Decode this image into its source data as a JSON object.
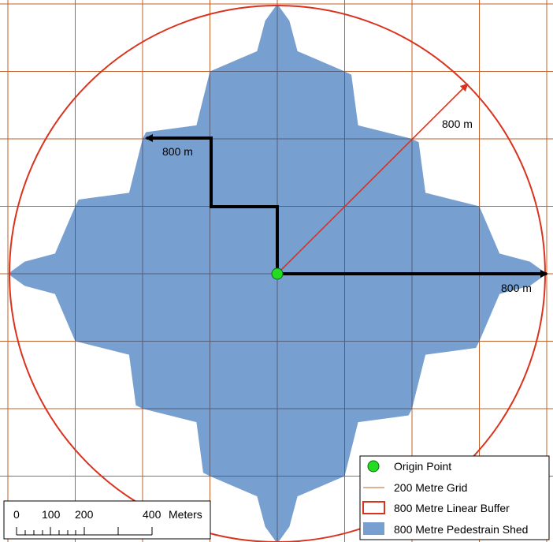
{
  "colors": {
    "grid": "#c0602a",
    "buffer": "#d9331e",
    "shed_fill": "#779fcf",
    "shed_grid": "#555e78",
    "route": "#000000",
    "radius_arrow": "#d9331e",
    "origin": "#22dd22"
  },
  "labels": {
    "route_label": "800 m",
    "radius_label": "800 m",
    "east_label": "800 m"
  },
  "legend": {
    "items": [
      {
        "label": "Origin Point",
        "symbol": "green-circle"
      },
      {
        "label": "200 Metre Grid",
        "symbol": "orange-line"
      },
      {
        "label": "800 Metre Linear Buffer",
        "symbol": "red-outline-rect"
      },
      {
        "label": "800 Metre Pedestrain Shed",
        "symbol": "blue-filled-rect"
      }
    ]
  },
  "scale_bar": {
    "ticks": [
      "0",
      "100",
      "200",
      "400"
    ],
    "unit": "Meters"
  }
}
